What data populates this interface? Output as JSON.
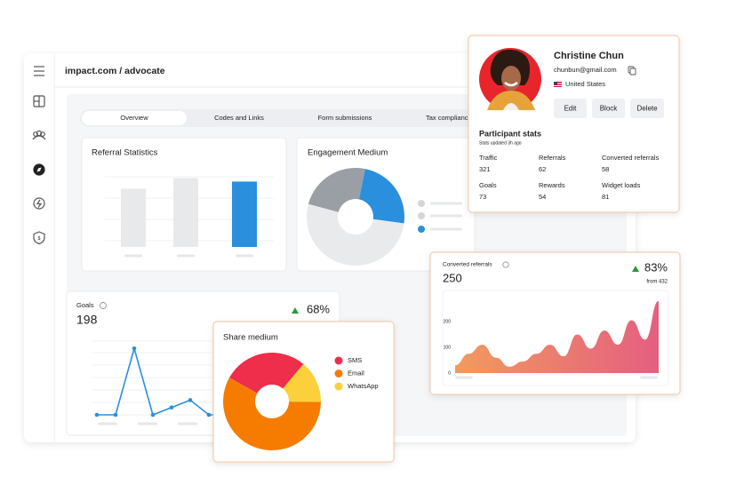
{
  "header": {
    "title": "impact.com / advocate"
  },
  "tabs": [
    "Overview",
    "Codes and Links",
    "Form submissions",
    "Tax compliance"
  ],
  "referral_stats": {
    "title": "Referral Statistics",
    "type": "bar",
    "values": [
      82,
      97,
      92
    ],
    "colors": [
      "#e8e9eb",
      "#e8e9eb",
      "#2a8fdc"
    ],
    "ylim": [
      0,
      100
    ]
  },
  "engagement": {
    "title": "Engagement Medium",
    "type": "pie",
    "values": [
      24,
      24,
      52
    ],
    "colors": [
      "#9a9fa6",
      "#2a8fdc",
      "#e9eaec"
    ]
  },
  "goals": {
    "title": "Goals",
    "value": 198,
    "change": "68%",
    "chart": {
      "type": "line",
      "values": [
        0,
        0,
        9,
        0,
        1,
        2,
        0,
        0
      ],
      "ylim": [
        0,
        10
      ],
      "color": "#2a8fdc"
    }
  },
  "share": {
    "title": "Share medium",
    "type": "pie",
    "categories": [
      "SMS",
      "Email",
      "WhatsApp"
    ],
    "values": [
      28,
      58,
      14
    ],
    "colors": [
      "#ee2e4a",
      "#f57c00",
      "#fcd03a"
    ]
  },
  "converted": {
    "title": "Converted referrals",
    "value": 250,
    "change": "83%",
    "from": "from 432",
    "chart": {
      "type": "area",
      "values": [
        30,
        75,
        110,
        60,
        25,
        45,
        75,
        110,
        65,
        150,
        95,
        165,
        110,
        205,
        130,
        280
      ],
      "ylim": [
        0,
        300
      ],
      "yticks": [
        0,
        100,
        200
      ]
    }
  },
  "profile": {
    "name": "Christine Chun",
    "email": "chunbun@gmail.com",
    "country": "United States",
    "buttons": [
      "Edit",
      "Block",
      "Delete"
    ],
    "stats_title": "Participant stats",
    "stats_note": "Stats updated 3h ago",
    "stats": [
      {
        "label": "Traffic",
        "value": 321
      },
      {
        "label": "Referrals",
        "value": 62
      },
      {
        "label": "Converted referrals",
        "value": 58
      },
      {
        "label": "Goals",
        "value": 73
      },
      {
        "label": "Rewards",
        "value": 54
      },
      {
        "label": "Widget loads",
        "value": 81
      }
    ]
  }
}
